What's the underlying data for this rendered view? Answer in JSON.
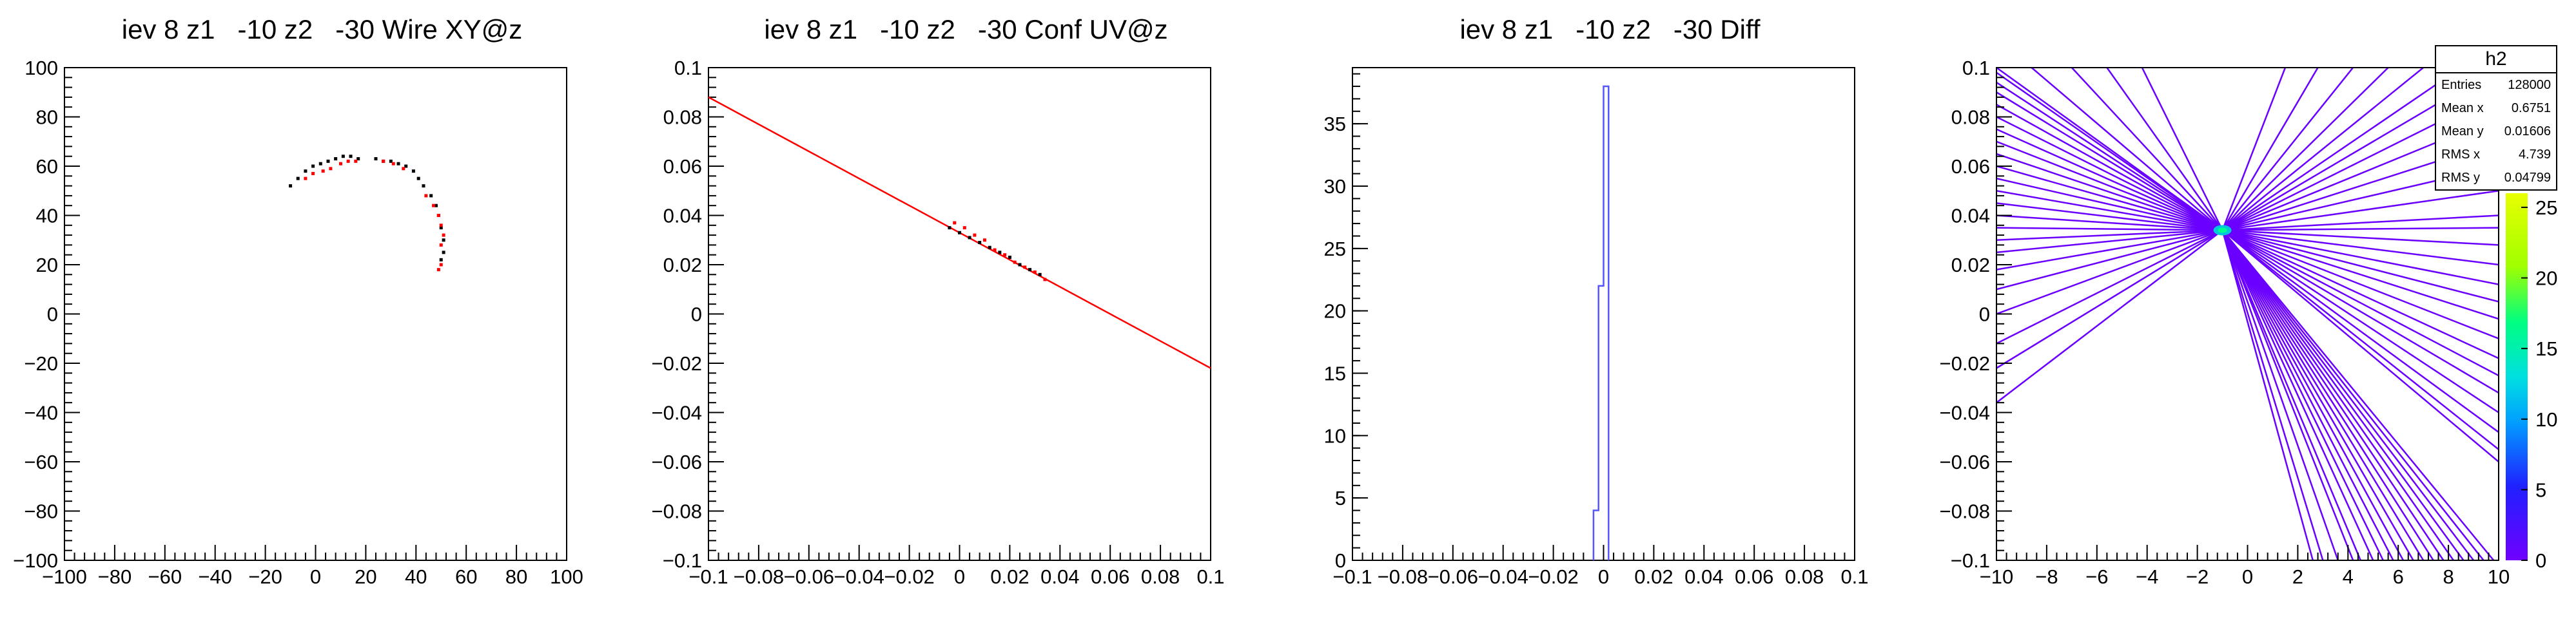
{
  "chart_data": [
    {
      "type": "scatter",
      "title": "iev 8 z1   -10 z2   -30 Wire XY@z",
      "xlim": [
        -100,
        100
      ],
      "ylim": [
        -100,
        100
      ],
      "x_ticks": [
        -100,
        -80,
        -60,
        -40,
        -20,
        0,
        20,
        40,
        60,
        80,
        100
      ],
      "y_ticks": [
        -100,
        -80,
        -60,
        -40,
        -20,
        0,
        20,
        40,
        60,
        80,
        100
      ],
      "x_tick_labels": [
        "−100",
        "−80",
        "−60",
        "−40",
        "−20",
        "0",
        "20",
        "40",
        "60",
        "80",
        "100"
      ],
      "y_tick_labels": [
        "−100",
        "−80",
        "−60",
        "−40",
        "−20",
        "0",
        "20",
        "40",
        "60",
        "80",
        "100"
      ],
      "series": [
        {
          "color": "#000000",
          "x": [
            -10,
            -7,
            -4,
            -1,
            2,
            5,
            8,
            11,
            14,
            17,
            24,
            27,
            30,
            33,
            36,
            39,
            41,
            43,
            46,
            48,
            49,
            50,
            51,
            51,
            50
          ],
          "y": [
            52,
            55,
            58,
            60,
            61,
            62,
            63,
            64,
            64,
            63,
            63,
            62,
            62,
            61,
            60,
            58,
            55,
            52,
            48,
            44,
            40,
            35,
            30,
            25,
            22
          ]
        },
        {
          "color": "#ff0000",
          "x": [
            -4,
            -1,
            3,
            6,
            10,
            13,
            16,
            27,
            31,
            35,
            44,
            47,
            49,
            50,
            51,
            50,
            50,
            49
          ],
          "y": [
            55,
            57,
            58,
            59,
            61,
            62,
            62,
            62,
            61,
            59,
            48,
            44,
            40,
            36,
            32,
            28,
            20,
            18
          ]
        }
      ]
    },
    {
      "type": "scatter",
      "title": "iev 8 z1   -10 z2   -30 Conf UV@z",
      "xlim": [
        -0.1,
        0.1
      ],
      "ylim": [
        -0.1,
        0.1
      ],
      "x_ticks": [
        -0.1,
        -0.08,
        -0.06,
        -0.04,
        -0.02,
        0,
        0.02,
        0.04,
        0.06,
        0.08,
        0.1
      ],
      "y_ticks": [
        -0.1,
        -0.08,
        -0.06,
        -0.04,
        -0.02,
        0,
        0.02,
        0.04,
        0.06,
        0.08,
        0.1
      ],
      "x_tick_labels": [
        "−0.1",
        "−0.08",
        "−0.06",
        "−0.04",
        "−0.02",
        "0",
        "0.02",
        "0.04",
        "0.06",
        "0.08",
        "0.1"
      ],
      "y_tick_labels": [
        "−0.1",
        "−0.08",
        "−0.06",
        "−0.04",
        "−0.02",
        "0",
        "0.02",
        "0.04",
        "0.06",
        "0.08",
        "0.1"
      ],
      "fit_line": {
        "x1": -0.1,
        "y1": 0.088,
        "x2": 0.1,
        "y2": -0.022,
        "color": "#ff0000"
      },
      "series": [
        {
          "color": "#000000",
          "x": [
            -0.004,
            0.0,
            0.004,
            0.008,
            0.012,
            0.016,
            0.02,
            0.024,
            0.028,
            0.032
          ],
          "y": [
            0.035,
            0.033,
            0.031,
            0.029,
            0.027,
            0.025,
            0.023,
            0.02,
            0.018,
            0.016
          ]
        },
        {
          "color": "#ff0000",
          "x": [
            -0.002,
            0.002,
            0.006,
            0.01,
            0.014,
            0.018,
            0.022,
            0.026,
            0.03,
            0.034
          ],
          "y": [
            0.037,
            0.035,
            0.032,
            0.03,
            0.026,
            0.024,
            0.021,
            0.019,
            0.017,
            0.014
          ]
        }
      ]
    },
    {
      "type": "bar",
      "title": "iev 8 z1   -10 z2   -30 Diff",
      "xlim": [
        -0.1,
        0.1
      ],
      "ylim": [
        0,
        39.5
      ],
      "x_ticks": [
        -0.1,
        -0.08,
        -0.06,
        -0.04,
        -0.02,
        0,
        0.02,
        0.04,
        0.06,
        0.08,
        0.1
      ],
      "y_ticks": [
        0,
        5,
        10,
        15,
        20,
        25,
        30,
        35
      ],
      "x_tick_labels": [
        "−0.1",
        "−0.08",
        "−0.06",
        "−0.04",
        "−0.02",
        "0",
        "0.02",
        "0.04",
        "0.06",
        "0.08",
        "0.1"
      ],
      "y_tick_labels": [
        "0",
        "5",
        "10",
        "15",
        "20",
        "25",
        "30",
        "35"
      ],
      "color": "#5555ff",
      "bins": [
        {
          "x0": -0.004,
          "x1": -0.002,
          "value": 4
        },
        {
          "x0": -0.002,
          "x1": 0.0,
          "value": 22
        },
        {
          "x0": 0.0,
          "x1": 0.002,
          "value": 38
        }
      ]
    },
    {
      "type": "heatmap",
      "xlim": [
        -10,
        10
      ],
      "ylim": [
        -0.1,
        0.1
      ],
      "x_ticks": [
        -10,
        -8,
        -6,
        -4,
        -2,
        0,
        2,
        4,
        6,
        8,
        10
      ],
      "y_ticks": [
        -0.1,
        -0.08,
        -0.06,
        -0.04,
        -0.02,
        0,
        0.02,
        0.04,
        0.06,
        0.08,
        0.1
      ],
      "x_tick_labels": [
        "−10",
        "−8",
        "−6",
        "−4",
        "−2",
        "0",
        "2",
        "4",
        "6",
        "8",
        "10"
      ],
      "y_tick_labels": [
        "−0.1",
        "−0.08",
        "−0.06",
        "−0.04",
        "−0.02",
        "0",
        "0.02",
        "0.04",
        "0.06",
        "0.08",
        "0.1"
      ],
      "focus": {
        "x": -1.0,
        "y": 0.034
      },
      "line_color": "#6a00ff",
      "left_ends_y": [
        0.1,
        0.098,
        0.094,
        0.09,
        0.085,
        0.08,
        0.075,
        0.07,
        0.065,
        0.06,
        0.055,
        0.05,
        0.045,
        0.04,
        0.035,
        0.03,
        0.025,
        0.018,
        0.01,
        0.0,
        -0.012,
        -0.022,
        -0.036
      ],
      "right_ends_y": [
        0.1,
        0.09,
        0.08,
        0.07,
        0.06,
        0.05,
        0.04,
        0.035,
        0.028,
        0.02,
        0.012,
        0.005,
        -0.002,
        -0.01,
        -0.018,
        -0.025,
        -0.032,
        -0.04,
        -0.048,
        -0.055,
        -0.06
      ],
      "bottom_ends_x": [
        2.6,
        3.0,
        3.6,
        4.2,
        4.5,
        5.0,
        5.4,
        5.8,
        6.2,
        6.6,
        7.0,
        7.4,
        7.8,
        8.2,
        8.6,
        9.0,
        9.4,
        9.8
      ],
      "top_ends_x": [
        -8.6,
        -7.0,
        -5.6,
        -4.2,
        1.5,
        2.8,
        4.2,
        5.6,
        7.0,
        8.5
      ],
      "colorbar": {
        "min": 0,
        "max": 26,
        "ticks": [
          0,
          5,
          10,
          15,
          20,
          25
        ],
        "tick_labels": [
          "0",
          "5",
          "10",
          "15",
          "20",
          "25"
        ]
      },
      "stats": {
        "title": "h2",
        "rows": [
          {
            "label": "Entries",
            "value": "128000"
          },
          {
            "label": "Mean x",
            "value": "0.6751"
          },
          {
            "label": "Mean y",
            "value": "0.01606"
          },
          {
            "label": "RMS x",
            "value": "4.739"
          },
          {
            "label": "RMS y",
            "value": "0.04799"
          }
        ]
      }
    }
  ]
}
